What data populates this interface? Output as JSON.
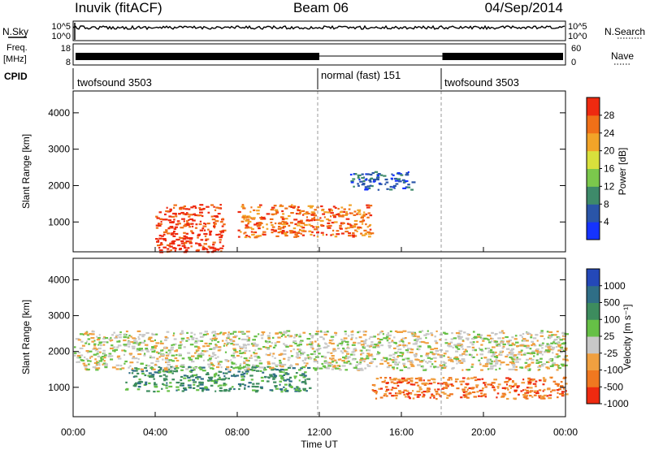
{
  "header": {
    "station": "Inuvik (fitACF)",
    "beam": "Beam 06",
    "date": "04/Sep/2014"
  },
  "top_panels": {
    "nsky_label": "N.Sky",
    "nsky_ticks": [
      "10^5",
      "10^0"
    ],
    "nsearch_label": "N.Search",
    "nsearch_ticks": [
      "10^5",
      "10^0"
    ],
    "freq_label": "Freq.",
    "freq_unit": "[MHz]",
    "freq_ticks": [
      "18",
      "8"
    ],
    "nave_label": "Nave",
    "nave_ticks": [
      "60",
      "0"
    ],
    "cpid_label": "CPID",
    "cpid_segments": [
      {
        "label": "twofsound 3503",
        "start_hour": 0,
        "end_hour": 12
      },
      {
        "label": "normal (fast) 151",
        "start_hour": 12,
        "end_hour": 18
      },
      {
        "label": "twofsound 3503",
        "start_hour": 18,
        "end_hour": 24
      }
    ]
  },
  "chart_data": [
    {
      "type": "heatmap",
      "name": "power",
      "ylabel": "Slant Range [km]",
      "x_range_hours": [
        0,
        24
      ],
      "ylim": [
        180,
        4600
      ],
      "yticks": [
        "1000",
        "2000",
        "3000",
        "4000"
      ],
      "colorbar_label": "Power [dB]",
      "colorbar_ticks": [
        "4",
        "8",
        "12",
        "16",
        "20",
        "24",
        "28"
      ],
      "colors": [
        "#1533ff",
        "#2a55a8",
        "#3e8a6a",
        "#7bc84c",
        "#d8e03c",
        "#f2a428",
        "#f07018",
        "#ee2a10"
      ],
      "features": [
        {
          "x": [
            4.0,
            7.3
          ],
          "y": [
            180,
            1500
          ],
          "level": "red (>28 dB)"
        },
        {
          "x": [
            8.0,
            14.5
          ],
          "y": [
            600,
            1500
          ],
          "level": "orange-red (20-28 dB)"
        },
        {
          "x": [
            13.5,
            16.5
          ],
          "y": [
            1900,
            2400
          ],
          "level": "blue (4-12 dB)"
        }
      ]
    },
    {
      "type": "heatmap",
      "name": "velocity",
      "ylabel": "Slant Range [km]",
      "x_range_hours": [
        0,
        24
      ],
      "ylim": [
        180,
        4600
      ],
      "yticks": [
        "1000",
        "2000",
        "3000",
        "4000"
      ],
      "colorbar_label": "Velocity [m s⁻¹]",
      "colorbar_ticks": [
        "1000",
        "500",
        "100",
        "25",
        "-25",
        "-100",
        "-500",
        "-1000"
      ],
      "colors": [
        "#2448b8",
        "#2f6e86",
        "#3d8c5e",
        "#66c046",
        "#c8c8c8",
        "#f0a040",
        "#f07820",
        "#ee2a10"
      ],
      "features": [
        {
          "x": [
            2.5,
            11.5
          ],
          "y": [
            900,
            1600
          ],
          "level": "green (toward radar)"
        },
        {
          "x": [
            14.5,
            24.0
          ],
          "y": [
            700,
            1300
          ],
          "level": "orange (away from radar)"
        },
        {
          "x": [
            0.0,
            24.0
          ],
          "y": [
            1500,
            2600
          ],
          "level": "grey (ground scatter)"
        }
      ]
    }
  ],
  "time_axis": {
    "ticks": [
      "00:00",
      "04:00",
      "08:00",
      "12:00",
      "16:00",
      "20:00",
      "00:00"
    ],
    "label": "Time UT"
  }
}
